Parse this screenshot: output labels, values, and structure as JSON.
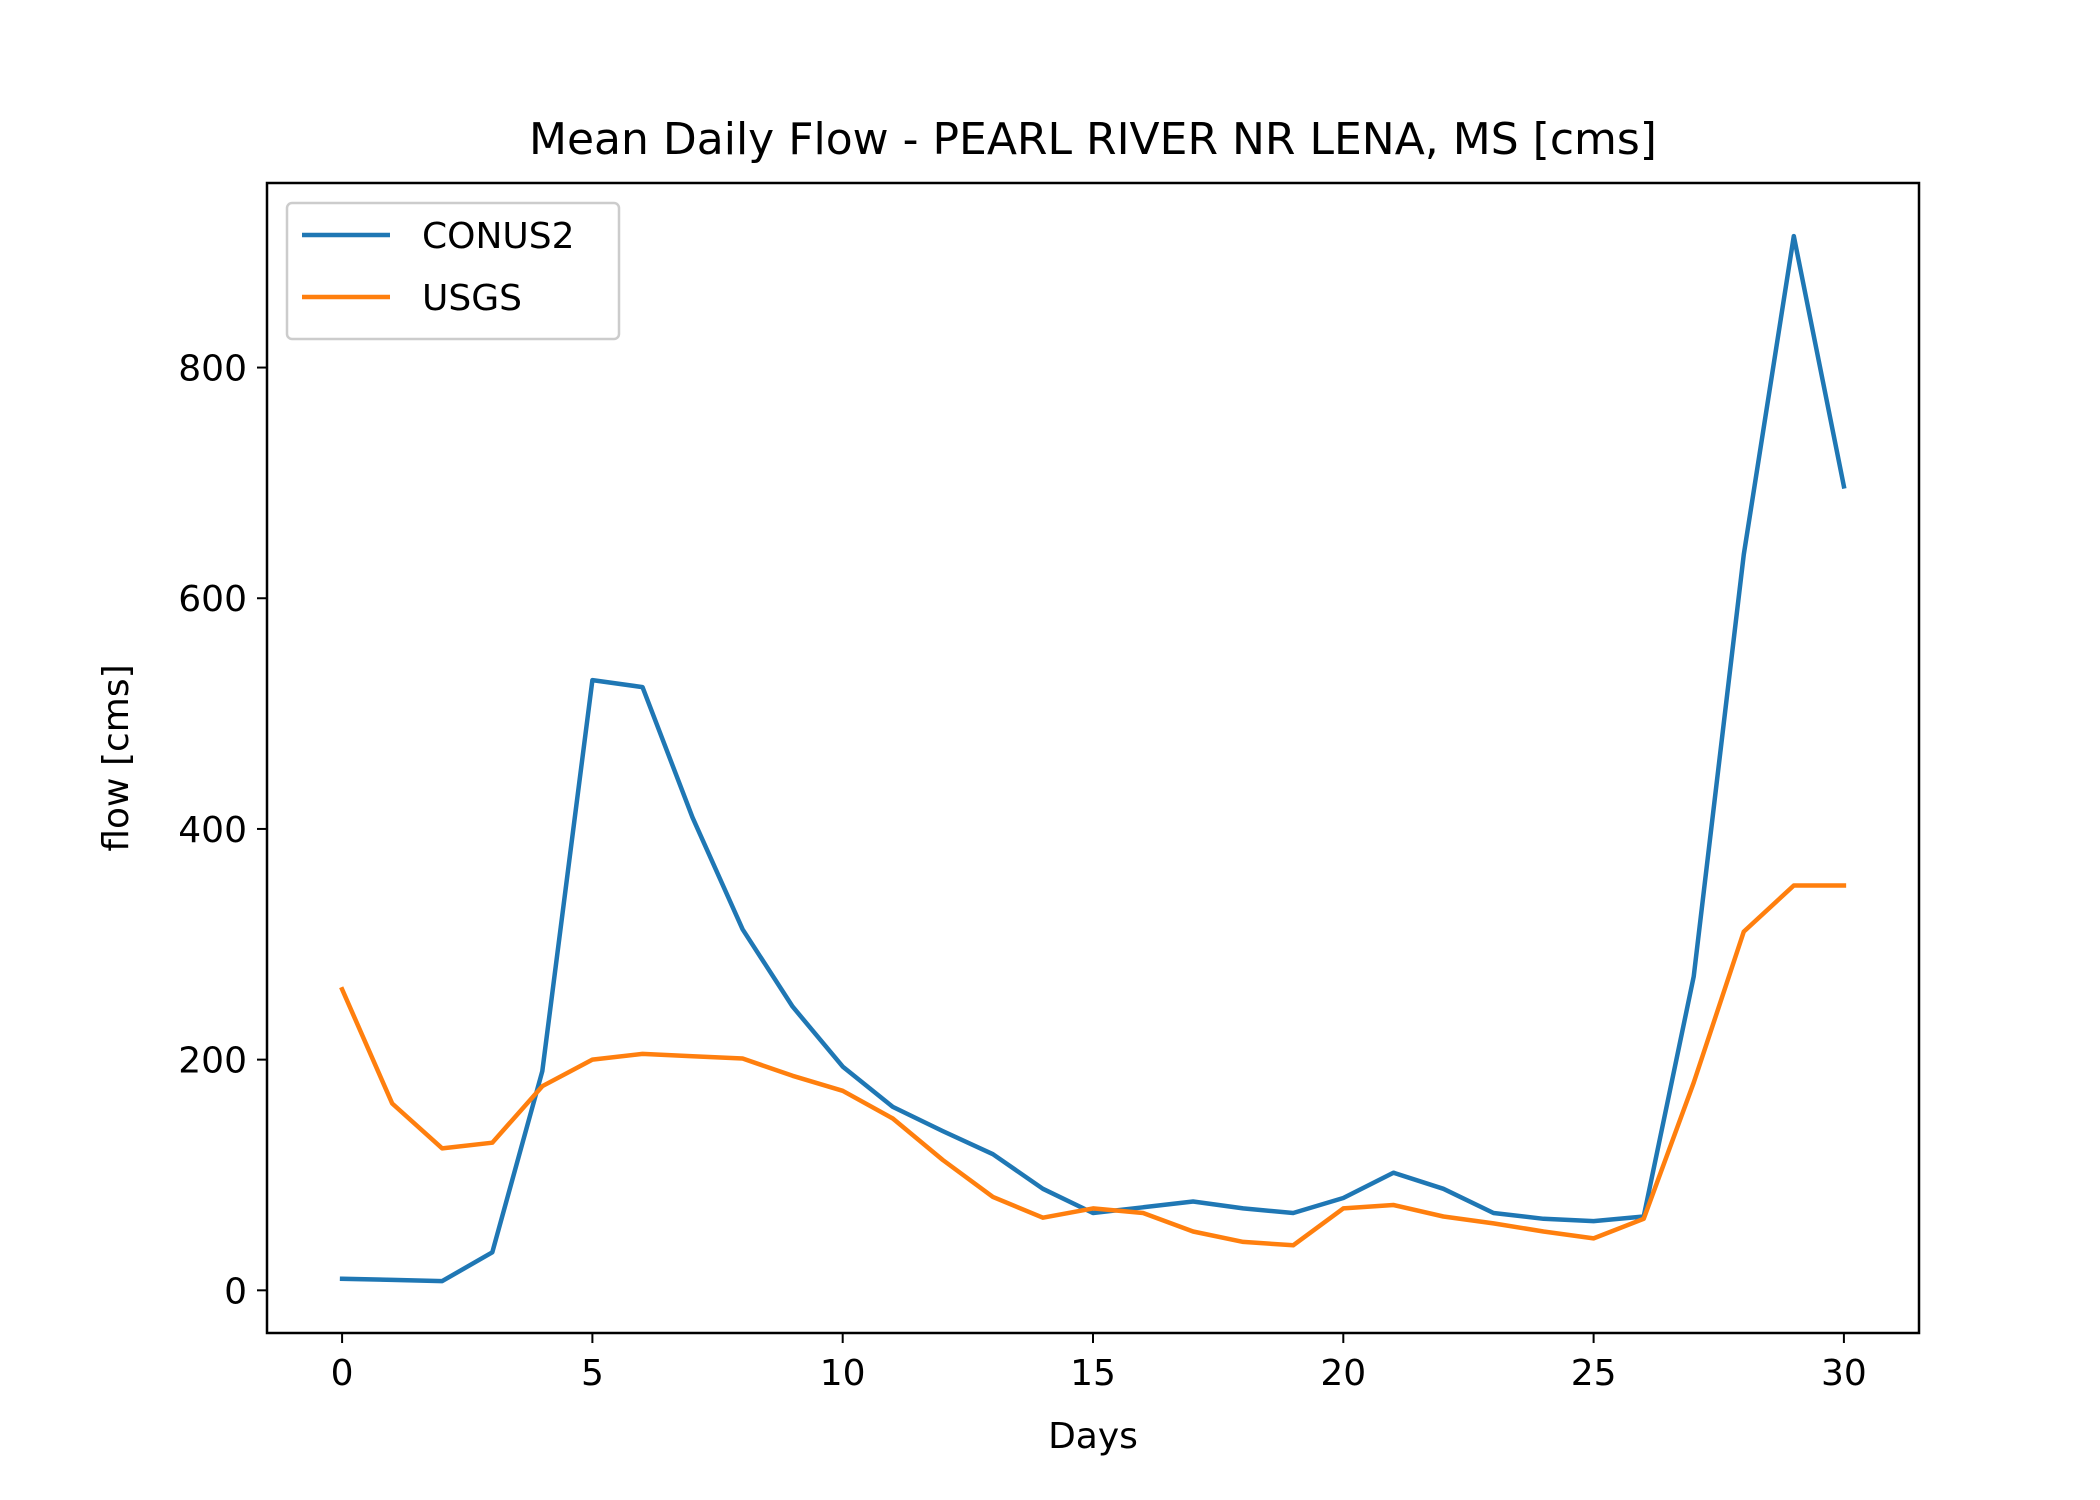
{
  "chart_data": {
    "type": "line",
    "title": "Mean Daily Flow - PEARL RIVER NR LENA, MS [cms]",
    "xlabel": "Days",
    "ylabel": "flow [cms]",
    "x": [
      0,
      1,
      2,
      3,
      4,
      5,
      6,
      7,
      8,
      9,
      10,
      11,
      12,
      13,
      14,
      15,
      16,
      17,
      18,
      19,
      20,
      21,
      22,
      23,
      24,
      25,
      26,
      27,
      28,
      29,
      30
    ],
    "xlim": [
      -1.5,
      31.5
    ],
    "ylim": [
      -37,
      960
    ],
    "xticks": [
      0,
      5,
      10,
      15,
      20,
      25,
      30
    ],
    "xtick_labels": [
      "0",
      "5",
      "10",
      "15",
      "20",
      "25",
      "30"
    ],
    "yticks": [
      0,
      200,
      400,
      600,
      800
    ],
    "ytick_labels": [
      "0",
      "200",
      "400",
      "600",
      "800"
    ],
    "grid": false,
    "legend_position": "top-left",
    "series": [
      {
        "name": "CONUS2",
        "color": "#1f77b4",
        "values": [
          10,
          9,
          8,
          33,
          190,
          529,
          523,
          410,
          313,
          246,
          194,
          159,
          138,
          118,
          88,
          67,
          72,
          77,
          71,
          67,
          80,
          102,
          88,
          67,
          62,
          60,
          64,
          272,
          638,
          914,
          697
        ]
      },
      {
        "name": "USGS",
        "color": "#ff7f0e",
        "values": [
          261,
          162,
          123,
          128,
          177,
          200,
          205,
          203,
          201,
          186,
          173,
          149,
          113,
          81,
          63,
          71,
          67,
          51,
          42,
          39,
          71,
          74,
          64,
          58,
          51,
          45,
          62,
          180,
          311,
          351,
          351
        ]
      }
    ]
  }
}
